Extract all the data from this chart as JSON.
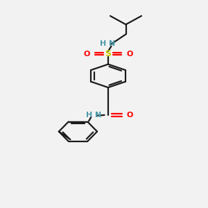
{
  "background_color": "#f2f2f2",
  "bond_color": "#1a1a1a",
  "atom_colors": {
    "N": "#4a9aaa",
    "O": "#ff0000",
    "S": "#cccc00"
  },
  "lw": 1.6,
  "font_size": 8,
  "xlim": [
    0,
    10
  ],
  "ylim": [
    0,
    17
  ],
  "figsize": [
    3.0,
    3.0
  ],
  "dpi": 100
}
